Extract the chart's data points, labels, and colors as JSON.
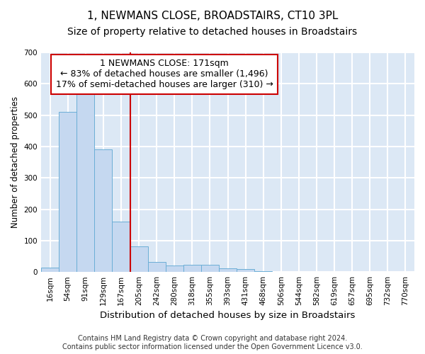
{
  "title": "1, NEWMANS CLOSE, BROADSTAIRS, CT10 3PL",
  "subtitle": "Size of property relative to detached houses in Broadstairs",
  "xlabel": "Distribution of detached houses by size in Broadstairs",
  "ylabel": "Number of detached properties",
  "categories": [
    "16sqm",
    "54sqm",
    "91sqm",
    "129sqm",
    "167sqm",
    "205sqm",
    "242sqm",
    "280sqm",
    "318sqm",
    "355sqm",
    "393sqm",
    "431sqm",
    "468sqm",
    "506sqm",
    "544sqm",
    "582sqm",
    "619sqm",
    "657sqm",
    "695sqm",
    "732sqm",
    "770sqm"
  ],
  "values": [
    13,
    510,
    570,
    390,
    160,
    82,
    33,
    20,
    23,
    23,
    12,
    9,
    2,
    0,
    0,
    0,
    0,
    0,
    0,
    0,
    0
  ],
  "bar_color": "#c5d8f0",
  "bar_edge_color": "#6baed6",
  "property_line_x": 4.5,
  "annotation_line1": "1 NEWMANS CLOSE: 171sqm",
  "annotation_line2": "← 83% of detached houses are smaller (1,496)",
  "annotation_line3": "17% of semi-detached houses are larger (310) →",
  "annotation_box_color": "white",
  "annotation_box_edge_color": "#cc0000",
  "property_line_color": "#cc0000",
  "ylim": [
    0,
    700
  ],
  "yticks": [
    0,
    100,
    200,
    300,
    400,
    500,
    600,
    700
  ],
  "background_color": "#dce8f5",
  "grid_color": "white",
  "footer_line1": "Contains HM Land Registry data © Crown copyright and database right 2024.",
  "footer_line2": "Contains public sector information licensed under the Open Government Licence v3.0.",
  "title_fontsize": 11,
  "subtitle_fontsize": 10,
  "xlabel_fontsize": 9.5,
  "ylabel_fontsize": 8.5,
  "tick_fontsize": 7.5,
  "annotation_fontsize": 9,
  "footer_fontsize": 7
}
